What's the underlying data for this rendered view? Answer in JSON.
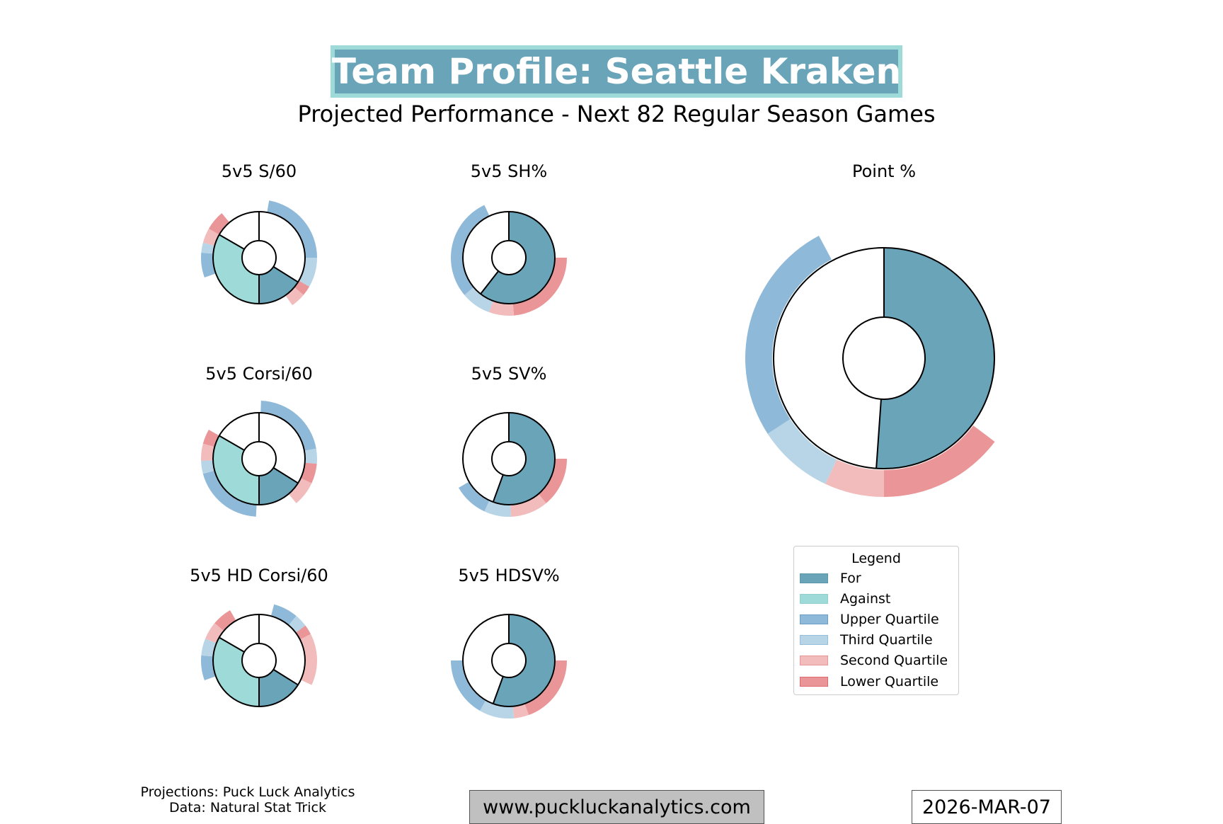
{
  "header": {
    "title": "Team Profile: Seattle Kraken",
    "subtitle": "Projected Performance - Next 82 Regular Season Games"
  },
  "colors": {
    "for": "#6aa4b9",
    "against": "#9ddad8",
    "upper": "#8fb9d8",
    "third": "#b8d5e8",
    "second": "#f2bcbd",
    "lower": "#ea9597",
    "title_border": "#9ddad8"
  },
  "legend": {
    "title": "Legend",
    "items": [
      {
        "label": "For",
        "color": "#6aa4b9"
      },
      {
        "label": "Against",
        "color": "#9ddad8"
      },
      {
        "label": "Upper Quartile",
        "color": "#8fb9d8"
      },
      {
        "label": "Third Quartile",
        "color": "#b8d5e8"
      },
      {
        "label": "Second Quartile",
        "color": "#f2bcbd"
      },
      {
        "label": "Lower Quartile",
        "color": "#ea9597"
      }
    ]
  },
  "footer": {
    "credit_projections": "Projections: Puck Luck Analytics",
    "credit_data": "Data: Natural Stat Trick",
    "url": "www.puckluckanalytics.com",
    "date": "2026-MAR-07"
  },
  "chart_data": [
    {
      "type": "donut",
      "title": "5v5 S/60",
      "inner": [
        {
          "name": "Against",
          "start_deg": 180,
          "end_deg": 300
        },
        {
          "name": "For",
          "start_deg": 122,
          "end_deg": 180
        }
      ],
      "quartile_ring": [
        {
          "quartile": "Upper",
          "start_deg": 10,
          "end_deg": 90
        },
        {
          "quartile": "Third",
          "start_deg": 90,
          "end_deg": 120
        },
        {
          "quartile": "Lower",
          "start_deg": 120,
          "end_deg": 130
        },
        {
          "quartile": "Second",
          "start_deg": 130,
          "end_deg": 145
        },
        {
          "quartile": "Upper",
          "start_deg": 250,
          "end_deg": 275
        },
        {
          "quartile": "Third",
          "start_deg": 275,
          "end_deg": 285
        },
        {
          "quartile": "Second",
          "start_deg": 285,
          "end_deg": 300
        },
        {
          "quartile": "Lower",
          "start_deg": 300,
          "end_deg": 320
        }
      ]
    },
    {
      "type": "donut",
      "title": "5v5 SH%",
      "inner": [
        {
          "name": "For",
          "start_deg": 0,
          "end_deg": 218
        }
      ],
      "quartile_ring": [
        {
          "quartile": "Lower",
          "start_deg": 90,
          "end_deg": 175
        },
        {
          "quartile": "Second",
          "start_deg": 175,
          "end_deg": 200
        },
        {
          "quartile": "Third",
          "start_deg": 200,
          "end_deg": 230
        },
        {
          "quartile": "Upper",
          "start_deg": 230,
          "end_deg": 335
        }
      ]
    },
    {
      "type": "donut",
      "title": "Point %",
      "inner": [
        {
          "name": "For",
          "start_deg": 0,
          "end_deg": 184
        }
      ],
      "quartile_ring": [
        {
          "quartile": "Lower",
          "start_deg": 127,
          "end_deg": 180
        },
        {
          "quartile": "Second",
          "start_deg": 180,
          "end_deg": 205
        },
        {
          "quartile": "Third",
          "start_deg": 205,
          "end_deg": 237
        },
        {
          "quartile": "Upper",
          "start_deg": 237,
          "end_deg": 332
        }
      ]
    },
    {
      "type": "donut",
      "title": "5v5 Corsi/60",
      "inner": [
        {
          "name": "Against",
          "start_deg": 180,
          "end_deg": 300
        },
        {
          "name": "For",
          "start_deg": 122,
          "end_deg": 180
        }
      ],
      "quartile_ring": [
        {
          "quartile": "Upper",
          "start_deg": 2,
          "end_deg": 80
        },
        {
          "quartile": "Third",
          "start_deg": 80,
          "end_deg": 95
        },
        {
          "quartile": "Lower",
          "start_deg": 95,
          "end_deg": 115
        },
        {
          "quartile": "Second",
          "start_deg": 115,
          "end_deg": 140
        },
        {
          "quartile": "Upper",
          "start_deg": 183,
          "end_deg": 255
        },
        {
          "quartile": "Third",
          "start_deg": 255,
          "end_deg": 268
        },
        {
          "quartile": "Second",
          "start_deg": 268,
          "end_deg": 285
        },
        {
          "quartile": "Lower",
          "start_deg": 285,
          "end_deg": 300
        }
      ]
    },
    {
      "type": "donut",
      "title": "5v5 SV%",
      "inner": [
        {
          "name": "For",
          "start_deg": 0,
          "end_deg": 200
        }
      ],
      "quartile_ring": [
        {
          "quartile": "Lower",
          "start_deg": 90,
          "end_deg": 140
        },
        {
          "quartile": "Second",
          "start_deg": 140,
          "end_deg": 178
        },
        {
          "quartile": "Third",
          "start_deg": 178,
          "end_deg": 205
        },
        {
          "quartile": "Upper",
          "start_deg": 205,
          "end_deg": 240
        }
      ]
    },
    {
      "type": "donut",
      "title": "5v5 HD Corsi/60",
      "inner": [
        {
          "name": "Against",
          "start_deg": 180,
          "end_deg": 300
        },
        {
          "name": "For",
          "start_deg": 122,
          "end_deg": 180
        }
      ],
      "quartile_ring": [
        {
          "quartile": "Upper",
          "start_deg": 15,
          "end_deg": 40
        },
        {
          "quartile": "Third",
          "start_deg": 40,
          "end_deg": 53
        },
        {
          "quartile": "Lower",
          "start_deg": 53,
          "end_deg": 63
        },
        {
          "quartile": "Second",
          "start_deg": 63,
          "end_deg": 115
        },
        {
          "quartile": "Upper",
          "start_deg": 250,
          "end_deg": 275
        },
        {
          "quartile": "Third",
          "start_deg": 275,
          "end_deg": 292
        },
        {
          "quartile": "Second",
          "start_deg": 292,
          "end_deg": 310
        },
        {
          "quartile": "Lower",
          "start_deg": 310,
          "end_deg": 330
        }
      ]
    },
    {
      "type": "donut",
      "title": "5v5 HDSV%",
      "inner": [
        {
          "name": "For",
          "start_deg": 0,
          "end_deg": 200
        }
      ],
      "quartile_ring": [
        {
          "quartile": "Lower",
          "start_deg": 90,
          "end_deg": 160
        },
        {
          "quartile": "Second",
          "start_deg": 160,
          "end_deg": 175
        },
        {
          "quartile": "Third",
          "start_deg": 175,
          "end_deg": 210
        },
        {
          "quartile": "Upper",
          "start_deg": 210,
          "end_deg": 270
        }
      ]
    }
  ]
}
